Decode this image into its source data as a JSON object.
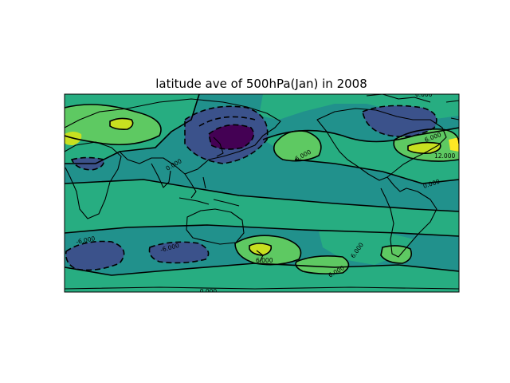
{
  "title": "latitude ave of 500hPa(Jan) in 2008",
  "map": {
    "projection": "equirectangular",
    "central_longitude": "180",
    "colormap": "viridis",
    "levels": [
      -12,
      -6,
      0,
      6,
      12
    ],
    "fill_colors": {
      "below_-12": "#440154",
      "-12_to_-6": "#3b528b",
      "-6_to_0": "#21918c",
      "0_to_6": "#27ad81",
      "6_to_12": "#5ec962",
      "above_12": "#c8e020",
      "peak": "#fde725"
    },
    "contour_labels": [
      "6.000",
      "0.000",
      "12.000",
      "0.000",
      "6.000",
      "0.000",
      "-6.000",
      "-6.000",
      "6.000",
      "6.000",
      "6.000",
      "-0.000"
    ]
  }
}
